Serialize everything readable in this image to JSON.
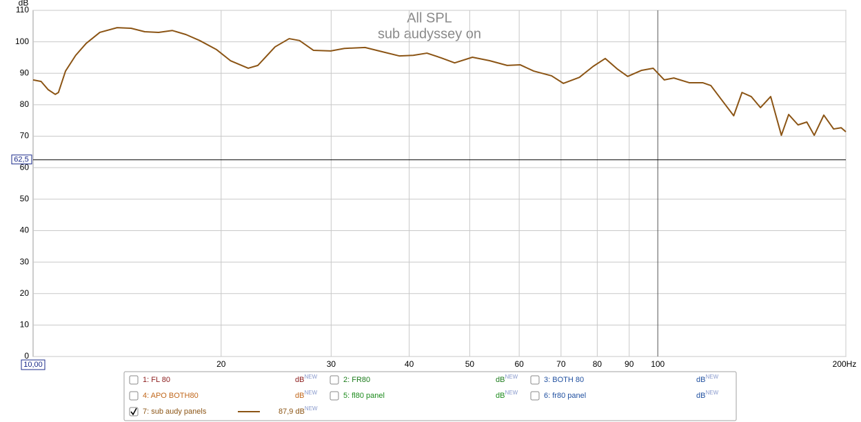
{
  "chart_data": {
    "type": "line",
    "title": "All SPL",
    "subtitle": "sub audyssey on",
    "y_label": "dB",
    "x_log": true,
    "grid": true,
    "xlim": [
      10,
      200
    ],
    "ylim": [
      0,
      110
    ],
    "xticks": [
      20,
      30,
      40,
      50,
      60,
      70,
      80,
      90,
      100,
      {
        "value": 200,
        "label": "200Hz"
      }
    ],
    "yticks": [
      0,
      10,
      20,
      30,
      40,
      50,
      60,
      70,
      80,
      90,
      100,
      110
    ],
    "cursor": {
      "x": {
        "value": 10,
        "label": "10,00"
      },
      "y": {
        "value": 62.5,
        "label": "62,5"
      }
    },
    "series": [
      {
        "name": "7: sub  audy panels",
        "color": "#8b5414",
        "checked": true,
        "reading": "87,9 dB",
        "tag": "NEW",
        "x": [
          10,
          10.3,
          10.57,
          10.85,
          10.98,
          11.27,
          11.7,
          12.16,
          12.79,
          13.63,
          14.35,
          15.09,
          15.88,
          16.7,
          17.57,
          18.48,
          19.67,
          20.7,
          22.1,
          22.9,
          24.4,
          25.7,
          26.7,
          28.1,
          29.96,
          31.5,
          34.0,
          36.3,
          38.6,
          40.6,
          42.7,
          45.0,
          47.3,
          50.5,
          53.8,
          57.4,
          60.2,
          63.3,
          67.6,
          70.6,
          74.9,
          78.8,
          82.4,
          86.1,
          89.5,
          94.1,
          98.3,
          102.4,
          106.1,
          112.3,
          118.0,
          121.6,
          126.6,
          132.3,
          136.4,
          141.1,
          146.0,
          151.6,
          157.7,
          162.0,
          167.7,
          173.2,
          178.0,
          184.4,
          191.2,
          196.6,
          200
        ],
        "values": [
          87.9,
          87.4,
          84.8,
          83.3,
          83.9,
          90.7,
          95.7,
          99.5,
          103.0,
          104.5,
          104.3,
          103.2,
          103.0,
          103.6,
          102.3,
          100.4,
          97.5,
          94.0,
          91.6,
          92.5,
          98.4,
          101.0,
          100.4,
          97.3,
          97.1,
          97.9,
          98.2,
          96.8,
          95.5,
          95.7,
          96.4,
          94.9,
          93.3,
          95.1,
          94.0,
          92.5,
          92.7,
          90.7,
          89.2,
          86.8,
          88.7,
          92.2,
          94.7,
          91.4,
          89.0,
          90.9,
          91.6,
          87.9,
          88.5,
          87.0,
          87.0,
          86.1,
          81.5,
          76.5,
          83.9,
          82.6,
          79.1,
          82.6,
          70.3,
          76.9,
          73.6,
          74.5,
          70.3,
          76.7,
          72.3,
          72.7,
          71.4
        ]
      }
    ],
    "other_traces": [
      {
        "name": "1: FL 80",
        "color": "#8b1a1a",
        "checked": false,
        "unit": "dB",
        "tag": "NEW"
      },
      {
        "name": "2: FR80",
        "color": "#1a7a1a",
        "checked": false,
        "unit": "dB",
        "tag": "NEW"
      },
      {
        "name": "3: BOTH 80",
        "color": "#1f4f9f",
        "checked": false,
        "unit": "dB",
        "tag": "NEW"
      },
      {
        "name": "4: APO BOTH80",
        "color": "#c0661a",
        "checked": false,
        "unit": "dB",
        "tag": "NEW"
      },
      {
        "name": "5: fl80 panel",
        "color": "#1a8a1a",
        "checked": false,
        "unit": "dB",
        "tag": "NEW"
      },
      {
        "name": "6: fr80 panel",
        "color": "#2050a0",
        "checked": false,
        "unit": "dB",
        "tag": "NEW"
      }
    ]
  }
}
